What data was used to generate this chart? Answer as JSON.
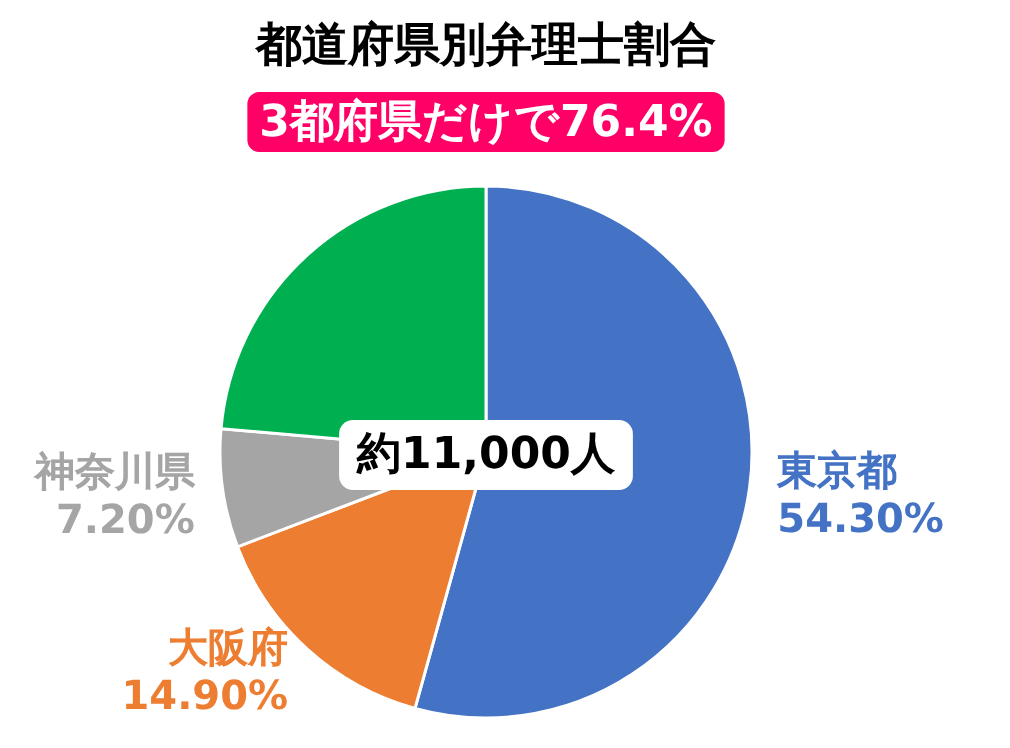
{
  "chart_data": {
    "type": "pie",
    "title": "都道府県別弁理士割合",
    "subtitle": "3都府県だけで76.4%",
    "categories": [
      "東京都",
      "大阪府",
      "神奈川県",
      null
    ],
    "values": [
      54.3,
      14.9,
      7.2,
      23.6
    ],
    "value_labels": [
      "54.30%",
      "14.90%",
      "7.20%",
      null
    ],
    "colors": [
      "#4472c4",
      "#ed7d31",
      "#a5a5a5",
      "#00b050"
    ],
    "annotations": [
      "約11,000人"
    ],
    "legend": false
  }
}
